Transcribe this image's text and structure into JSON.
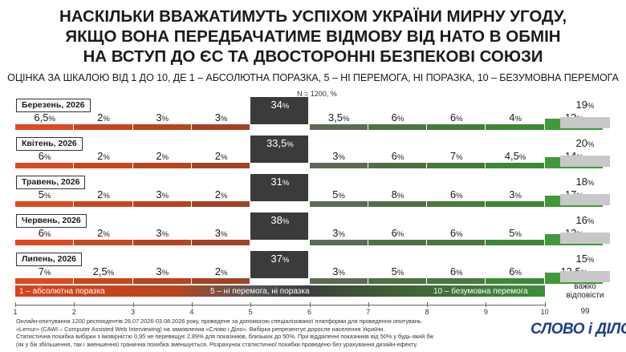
{
  "title_lines": [
    "НАСКІЛЬКИ ВВАЖАТИМУТЬ УСПІХОМ УКРАЇНИ МИРНУ УГОДУ,",
    "ЯКЩО ВОНА ПЕРЕДБАЧАТИМЕ ВІДМОВУ ВІД НАТО В ОБМІН",
    "НА ВСТУП ДО ЄС ТА ДВОСТОРОННІ БЕЗПЕКОВІ СОЮЗИ"
  ],
  "subtitle": "ОЦІНКА ЗА ШКАЛОЮ ВІД 1 ДО 10, ДЕ 1 – АБСОЛЮТНА ПОРАЗКА, 5 – НІ ПЕРЕМОГА, НІ ПОРАЗКА, 10 – БЕЗУМОВНА ПЕРЕМОГА",
  "sample_note": "N = 1200, %",
  "scale_labels": {
    "left": "1 – абсолютна поразка",
    "middle": "5 – ні перемога, ні поразка",
    "right": "10 – безумовна перемога"
  },
  "axis_ticks": [
    "1",
    "2",
    "3",
    "4",
    "5",
    "6",
    "7",
    "8",
    "9",
    "10"
  ],
  "dk_label_lines": [
    "важко",
    "відповісти"
  ],
  "dk_tick": "99",
  "footnote_lines": [
    "Онлайн-опитування 1200 респондентів 26.07.2026-03.08.2026 року, проведене за допомогою спеціалізованої платформи для проведення опитувань",
    "«Lemur» (CAWI – Computer Assisted Web Interviewing) на замовлення «Слово і Діло». Вибірка репрезентує доросле населення України.",
    "Статистична похибка вибірки з імовірністю 0,95 не перевищує 2,89% для показників, близьких до 50%. При віддаленні показників від 50% у будь-який бік",
    "(як у бік збільшення, так і зменшення) гранична похибка зменшується. Розрахунок статистичної похибки проведено без урахування дизайн-ефекту."
  ],
  "logo_text": "СЛОВО і ДІЛО",
  "colors": {
    "score_1": "#dc4a1e",
    "score_2": "#c8461d",
    "score_3": "#b8431f",
    "score_4": "#a34224",
    "score_5": "#3b3b3b",
    "score_6": "#5c6a56",
    "score_7": "#4f7045",
    "score_8": "#457a3c",
    "score_9": "#3f8636",
    "score_10": "#3f9a3a",
    "dont_know": "#c8c8c8"
  },
  "chart_data": {
    "type": "bar",
    "categories": [
      "1",
      "2",
      "3",
      "4",
      "5",
      "6",
      "7",
      "8",
      "9",
      "10",
      "99"
    ],
    "unit": "%",
    "series": [
      {
        "name": "Березень, 2026",
        "values": [
          6.5,
          2,
          3,
          3,
          34,
          3.5,
          6,
          6,
          4,
          13,
          19
        ],
        "labels": [
          "6,5",
          "2",
          "3",
          "3",
          "34",
          "3,5",
          "6",
          "6",
          "4",
          "13",
          "19"
        ]
      },
      {
        "name": "Квітень, 2026",
        "values": [
          6,
          2,
          2,
          2,
          33.5,
          3,
          6,
          7,
          4.5,
          14,
          20
        ],
        "labels": [
          "6",
          "2",
          "2",
          "2",
          "33,5",
          "3",
          "6",
          "7",
          "4,5",
          "14",
          "20"
        ]
      },
      {
        "name": "Травень, 2026",
        "values": [
          5,
          2,
          3,
          2,
          31,
          5,
          8,
          6,
          3,
          17,
          18
        ],
        "labels": [
          "5",
          "2",
          "3",
          "2",
          "31",
          "5",
          "8",
          "6",
          "3",
          "17",
          "18"
        ]
      },
      {
        "name": "Червень, 2026",
        "values": [
          6,
          2,
          3,
          3,
          38,
          3,
          6,
          6,
          5,
          12,
          16
        ],
        "labels": [
          "6",
          "2",
          "3",
          "3",
          "38",
          "3",
          "6",
          "6",
          "5",
          "12",
          "16"
        ]
      },
      {
        "name": "Липень, 2026",
        "values": [
          7,
          2.5,
          3,
          2,
          37,
          3,
          5,
          6,
          6,
          13.5,
          15
        ],
        "labels": [
          "7",
          "2,5",
          "3",
          "2",
          "37",
          "3",
          "5",
          "6",
          "6",
          "13,5",
          "15"
        ]
      }
    ]
  }
}
